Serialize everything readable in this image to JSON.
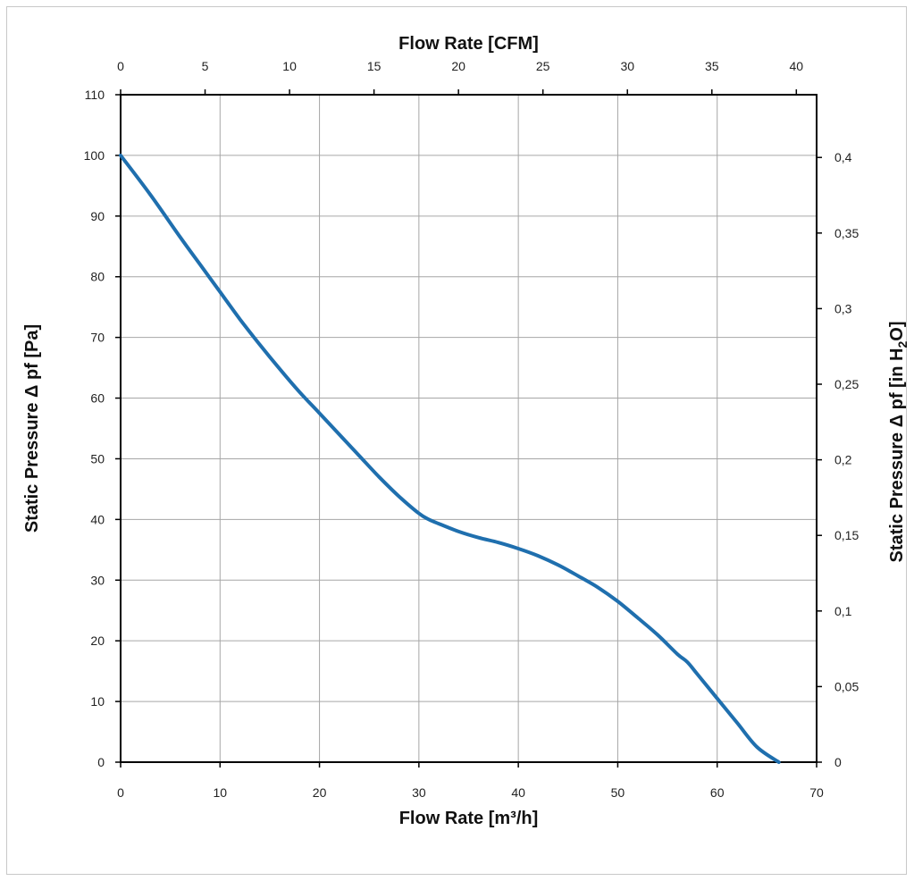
{
  "chart_data": {
    "type": "line",
    "x_bottom": {
      "label": "Flow Rate [m³/h]",
      "range": [
        0,
        70
      ],
      "ticks": [
        0,
        10,
        20,
        30,
        40,
        50,
        60,
        70
      ]
    },
    "x_top": {
      "label": "Flow Rate [CFM]",
      "range": [
        0,
        41.2
      ],
      "ticks": [
        0,
        5,
        10,
        15,
        20,
        25,
        30,
        35,
        40
      ]
    },
    "y_left": {
      "label": "Static Pressure Δ pf [Pa]",
      "range": [
        0,
        110
      ],
      "ticks": [
        0,
        10,
        20,
        30,
        40,
        50,
        60,
        70,
        80,
        90,
        100,
        110
      ]
    },
    "y_right": {
      "label_main": "Static Pressure Δ pf [in H",
      "label_sub": "2",
      "label_end": "O]",
      "range": [
        0,
        0.4415
      ],
      "ticks": [
        0,
        0.05,
        0.1,
        0.15,
        0.2,
        0.25,
        0.3,
        0.35,
        0.4
      ],
      "tick_labels": [
        "0",
        "0,05",
        "0,1",
        "0,15",
        "0,2",
        "0,25",
        "0,3",
        "0,35",
        "0,4"
      ]
    },
    "grid": true,
    "series": [
      {
        "color": "#1f6fae",
        "x": [
          0,
          3,
          6,
          8,
          10,
          12,
          14,
          16,
          18,
          20,
          22,
          24,
          26,
          28,
          30,
          31,
          32,
          34,
          36,
          38,
          40,
          42,
          44,
          46,
          48,
          50,
          52,
          54,
          56,
          57,
          58,
          60,
          62,
          64,
          66.2
        ],
        "y": [
          100,
          93.5,
          86.5,
          82,
          77.5,
          73,
          68.8,
          64.8,
          61,
          57.5,
          54,
          50.5,
          47,
          43.8,
          41,
          40,
          39.3,
          38,
          37,
          36.2,
          35.2,
          34,
          32.5,
          30.7,
          28.8,
          26.5,
          23.8,
          21,
          17.8,
          16.5,
          14.5,
          10.5,
          6.5,
          2.5,
          0
        ]
      }
    ]
  }
}
